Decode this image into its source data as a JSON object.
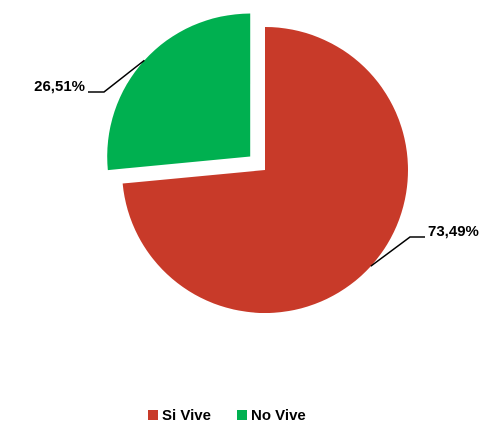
{
  "chart_data": {
    "type": "pie",
    "categories": [
      "Si Vive",
      "No Vive"
    ],
    "values": [
      73.49,
      26.51
    ],
    "value_labels": [
      "73,49%",
      "26,51%"
    ],
    "colors": [
      "#c83a29",
      "#00b050"
    ],
    "legend": "bottom"
  }
}
